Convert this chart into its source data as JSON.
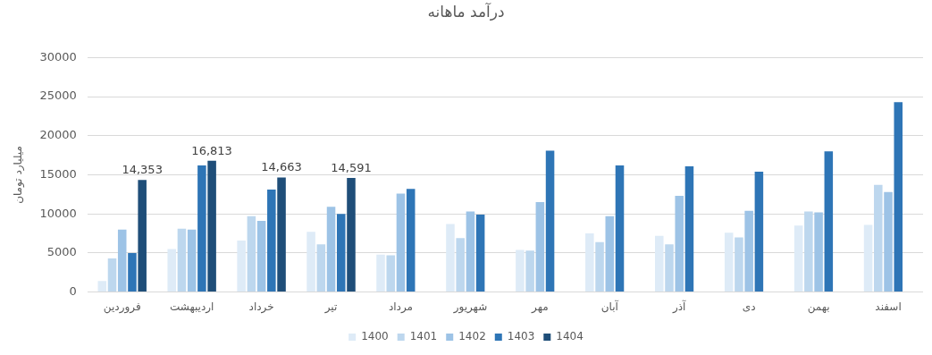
{
  "chart_data": {
    "type": "bar",
    "title": "درآمد ماهانه",
    "ylabel": "میلیارد تومان",
    "categories": [
      "فروردین",
      "اردیبهشت",
      "خرداد",
      "تیر",
      "مرداد",
      "شهریور",
      "مهر",
      "آبان",
      "آذر",
      "دی",
      "بهمن",
      "اسفند"
    ],
    "series": [
      {
        "name": "1400",
        "color": "#deebf7",
        "values": [
          1400,
          5500,
          6600,
          7700,
          4800,
          8700,
          5400,
          7500,
          7200,
          7600,
          8500,
          8600
        ]
      },
      {
        "name": "1401",
        "color": "#bdd7ee",
        "values": [
          4300,
          8100,
          9700,
          6100,
          4700,
          6900,
          5300,
          6400,
          6100,
          7000,
          10300,
          13700
        ]
      },
      {
        "name": "1402",
        "color": "#9dc3e6",
        "values": [
          8000,
          8000,
          9100,
          10900,
          12600,
          10300,
          11500,
          9700,
          12300,
          10400,
          10200,
          12800
        ]
      },
      {
        "name": "1403",
        "color": "#2e75b6",
        "values": [
          5000,
          16200,
          13100,
          10000,
          13200,
          9900,
          18100,
          16200,
          16100,
          15400,
          18000,
          24300
        ]
      },
      {
        "name": "1404",
        "color": "#1f4e79",
        "values": [
          14353,
          16813,
          14663,
          14591,
          null,
          null,
          null,
          null,
          null,
          null,
          null,
          null
        ],
        "value_labels": [
          "14,353",
          "16,813",
          "14,663",
          "14,591",
          null,
          null,
          null,
          null,
          null,
          null,
          null,
          null
        ]
      }
    ],
    "ylim": [
      0,
      30000
    ],
    "yticks": [
      0,
      5000,
      10000,
      15000,
      20000,
      25000,
      30000
    ],
    "grid": "y",
    "legend": "bottom"
  }
}
